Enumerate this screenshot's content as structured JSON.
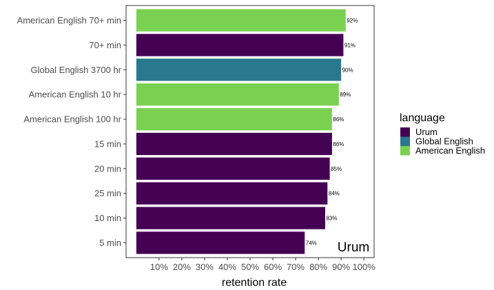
{
  "chart_data": {
    "type": "bar",
    "orientation": "horizontal",
    "categories": [
      "American English 70+ min",
      "70+ min",
      "Global English 3700 hr",
      "American English 10 hr",
      "American English 100 hr",
      "15 min",
      "20 min",
      "25 min",
      "10 min",
      "5 min"
    ],
    "values": [
      92,
      91,
      90,
      89,
      86,
      86,
      85,
      84,
      83,
      74
    ],
    "data_labels": [
      "92%",
      "91%",
      "90%",
      "89%",
      "86%",
      "86%",
      "85%",
      "84%",
      "83%",
      "74%"
    ],
    "bar_language": [
      "American English",
      "Urum",
      "Global English",
      "American English",
      "American English",
      "Urum",
      "Urum",
      "Urum",
      "Urum",
      "Urum"
    ],
    "xlim": [
      0,
      100
    ],
    "x_ticks": [
      10,
      20,
      30,
      40,
      50,
      60,
      70,
      80,
      90,
      100
    ],
    "x_tick_labels": [
      "10%",
      "20%",
      "30%",
      "40%",
      "50%",
      "60%",
      "70%",
      "80%",
      "90%",
      "100%"
    ],
    "xlabel": "retention rate",
    "ylabel": "",
    "annotation": "Urum",
    "grid": false,
    "legend": {
      "title": "language",
      "position": "right",
      "entries": [
        {
          "name": "Urum",
          "color": "#440154"
        },
        {
          "name": "Global English",
          "color": "#2a788e"
        },
        {
          "name": "American English",
          "color": "#7ad151"
        }
      ]
    }
  }
}
